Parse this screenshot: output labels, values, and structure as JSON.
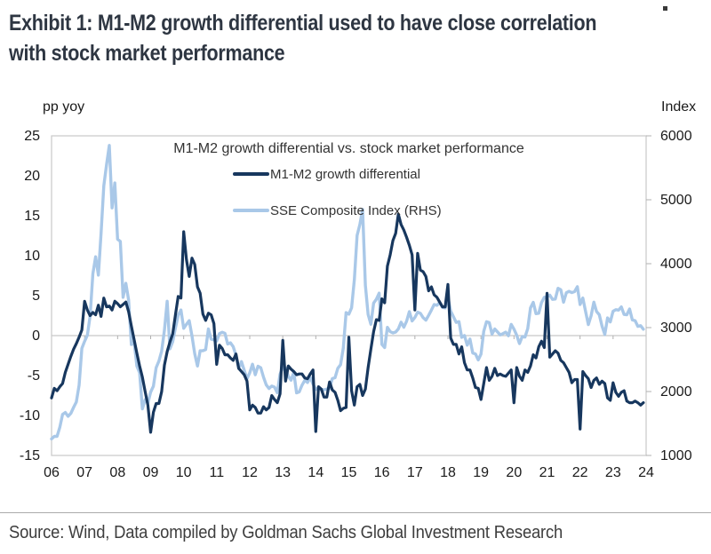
{
  "exhibit": {
    "title_lines": [
      "Exhibit 1: M1-M2 growth differential used to have close correlation",
      "with stock market performance"
    ],
    "source": "Source: Wind, Data compiled by Goldman Sachs Global Investment Research"
  },
  "colors": {
    "title": "#2e3642",
    "axis_text": "#1a1a1a",
    "frame_gray": "#c8c8c8",
    "tick_gray": "#b0b0b0",
    "navy": "#17375e",
    "light_blue": "#a9c8e8"
  },
  "chart_data": {
    "type": "line",
    "title": "M1-M2 growth differential vs. stock market performance",
    "grid": "zero-line-only",
    "legend_position": "top-center",
    "left_axis": {
      "unit_label": "pp yoy",
      "min": -15,
      "max": 25,
      "ticks": [
        25,
        20,
        15,
        10,
        5,
        0,
        -5,
        -10,
        -15
      ]
    },
    "right_axis": {
      "unit_label": "Index",
      "min": 1000,
      "max": 6000,
      "ticks": [
        6000,
        5000,
        4000,
        3000,
        2000,
        1000
      ]
    },
    "x_axis": {
      "start_year": 2006,
      "end_year": 2024,
      "tick_labels": [
        "06",
        "07",
        "08",
        "09",
        "10",
        "11",
        "12",
        "13",
        "14",
        "15",
        "16",
        "17",
        "18",
        "19",
        "20",
        "21",
        "22",
        "23",
        "24"
      ]
    },
    "legend": [
      {
        "name": "M1-M2 growth differential",
        "color": "#17375e",
        "axis": "left"
      },
      {
        "name": "SSE Composite Index (RHS)",
        "color": "#a9c8e8",
        "axis": "right"
      }
    ],
    "series": [
      {
        "name": "M1-M2 growth differential",
        "axis": "left",
        "color": "#17375e",
        "stroke_width": 3.2,
        "start": 2006.0,
        "interval_years": 0.0833333,
        "values": [
          -7.8,
          -6.6,
          -6.9,
          -6.4,
          -6.0,
          -4.6,
          -3.6,
          -2.6,
          -1.7,
          -1.0,
          -0.2,
          0.7,
          4.3,
          3.2,
          2.5,
          2.9,
          2.6,
          3.8,
          2.4,
          4.7,
          3.6,
          3.7,
          3.2,
          4.3,
          4.0,
          3.6,
          3.9,
          4.2,
          3.0,
          1.2,
          -0.5,
          -2.2,
          -3.8,
          -5.2,
          -7.0,
          -8.7,
          -12.1,
          -9.6,
          -8.5,
          -8.5,
          -7.0,
          -3.7,
          -2.0,
          -0.8,
          0.2,
          2.6,
          4.9,
          4.7,
          13.0,
          9.5,
          7.4,
          9.7,
          8.9,
          6.1,
          5.3,
          2.7,
          1.9,
          2.8,
          2.6,
          1.5,
          -3.6,
          -1.2,
          -1.6,
          -2.4,
          -2.4,
          -2.8,
          -3.1,
          -2.3,
          -4.1,
          -4.5,
          -4.9,
          -5.7,
          -9.3,
          -8.7,
          -9.0,
          -9.7,
          -9.7,
          -8.9,
          -9.3,
          -9.0,
          -7.5,
          -8.0,
          -8.4,
          -7.3,
          -0.6,
          -5.7,
          -3.8,
          -4.2,
          -4.5,
          -4.9,
          -4.8,
          -4.8,
          -5.3,
          -5.4,
          -4.8,
          -4.3,
          -12.0,
          -6.4,
          -6.7,
          -7.7,
          -7.7,
          -5.8,
          -6.8,
          -7.1,
          -8.1,
          -9.4,
          -9.1,
          -9.0,
          -0.2,
          -6.9,
          -8.7,
          -6.4,
          -6.1,
          -7.5,
          -6.7,
          -4.0,
          -1.7,
          0.5,
          2.0,
          1.9,
          4.6,
          4.1,
          8.7,
          10.1,
          11.9,
          12.8,
          15.2,
          13.9,
          13.2,
          12.3,
          11.3,
          10.1,
          3.2,
          10.3,
          8.2,
          8.0,
          7.4,
          5.6,
          6.1,
          5.1,
          4.8,
          4.2,
          3.6,
          3.6,
          6.4,
          -0.3,
          -1.1,
          -1.1,
          -2.3,
          -1.4,
          -3.4,
          -4.3,
          -4.3,
          -5.3,
          -6.5,
          -6.6,
          -8.0,
          -6.0,
          -4.0,
          -5.6,
          -5.1,
          -4.1,
          -5.0,
          -4.8,
          -5.0,
          -5.1,
          -4.7,
          -4.3,
          -8.4,
          -4.0,
          -5.1,
          -5.6,
          -4.3,
          -4.6,
          -3.8,
          -2.4,
          -2.8,
          -1.4,
          -0.7,
          -1.5,
          5.3,
          -2.7,
          -2.3,
          -1.9,
          -2.2,
          -3.1,
          -3.4,
          -4.0,
          -4.6,
          -5.9,
          -5.5,
          -5.5,
          -11.7,
          -4.5,
          -5.0,
          -5.4,
          -6.5,
          -5.6,
          -5.3,
          -6.1,
          -5.7,
          -6.0,
          -7.8,
          -8.1,
          -5.9,
          -7.1,
          -7.6,
          -7.1,
          -6.9,
          -8.2,
          -8.4,
          -8.4,
          -8.2,
          -8.4,
          -8.7,
          -8.4
        ]
      },
      {
        "name": "SSE Composite Index (RHS)",
        "axis": "right",
        "color": "#a9c8e8",
        "stroke_width": 3.4,
        "start": 2006.0,
        "interval_years": 0.0833333,
        "values": [
          1258,
          1299,
          1298,
          1440,
          1641,
          1672,
          1613,
          1658,
          1752,
          1837,
          2099,
          2675,
          2786,
          2881,
          3184,
          3841,
          4109,
          3821,
          4471,
          5218,
          5552,
          5850,
          4872,
          5262,
          4383,
          4349,
          3473,
          3693,
          3433,
          2736,
          2776,
          2397,
          2294,
          1729,
          1871,
          1821,
          1991,
          2083,
          2373,
          2477,
          2633,
          2959,
          3412,
          2668,
          2779,
          2995,
          3195,
          3277,
          2989,
          3052,
          3109,
          2871,
          2592,
          2398,
          2638,
          2639,
          2656,
          2979,
          2820,
          2808,
          2790,
          2905,
          2928,
          2911,
          2743,
          2762,
          2701,
          2567,
          2359,
          2468,
          2333,
          2199,
          2293,
          2428,
          2263,
          2396,
          2372,
          2225,
          2103,
          2047,
          2086,
          2068,
          1980,
          2269,
          2385,
          2366,
          2237,
          2178,
          2301,
          1979,
          1994,
          2098,
          2175,
          2141,
          2221,
          2116,
          2033,
          2056,
          2033,
          2026,
          2039,
          2048,
          2202,
          2217,
          2364,
          2420,
          2683,
          3235,
          3210,
          3310,
          3748,
          4442,
          4612,
          4850,
          3664,
          3206,
          3053,
          3383,
          3445,
          3539,
          2738,
          2688,
          3004,
          2938,
          2917,
          2930,
          2979,
          3085,
          3005,
          3100,
          3250,
          3104,
          3159,
          3242,
          3223,
          3155,
          3117,
          3192,
          3273,
          3361,
          3349,
          3393,
          3317,
          3307,
          3481,
          3259,
          3169,
          3082,
          3095,
          2847,
          2876,
          2725,
          2821,
          2603,
          2588,
          2494,
          2585,
          2941,
          3091,
          3078,
          2899,
          2979,
          2933,
          2886,
          2905,
          2929,
          2872,
          3050,
          2977,
          2880,
          2750,
          2860,
          2852,
          2985,
          3310,
          3396,
          3218,
          3225,
          3392,
          3473,
          3483,
          3509,
          3442,
          3447,
          3615,
          3591,
          3397,
          3544,
          3568,
          3547,
          3564,
          3640,
          3361,
          3462,
          3252,
          3047,
          3186,
          3399,
          3253,
          3202,
          3024,
          2893,
          3151,
          3089,
          3256,
          3280,
          3273,
          3323,
          3205,
          3202,
          3291,
          3120,
          3110,
          3019,
          3030,
          2975
        ]
      }
    ]
  }
}
